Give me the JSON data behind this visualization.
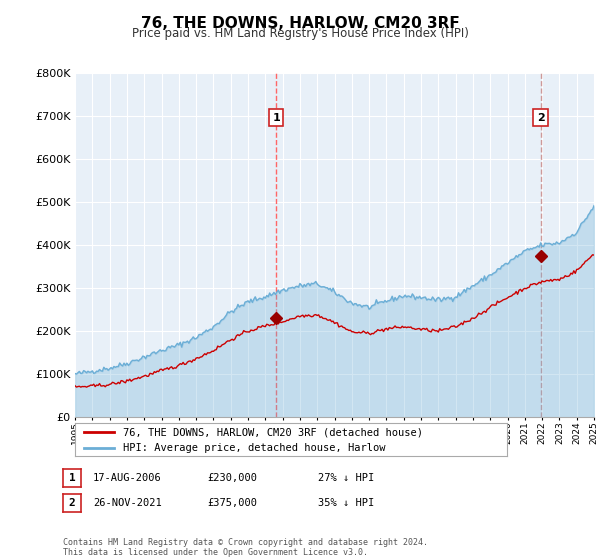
{
  "title": "76, THE DOWNS, HARLOW, CM20 3RF",
  "subtitle": "Price paid vs. HM Land Registry's House Price Index (HPI)",
  "hpi_color": "#6baed6",
  "hpi_fill_color": "#ddeeff",
  "price_color": "#cc0000",
  "marker_color": "#990000",
  "vline1_color": "#ff6666",
  "vline2_color": "#cc9999",
  "background_color": "#ffffff",
  "plot_bg_color": "#e8f0f8",
  "grid_color": "#ffffff",
  "legend_label_price": "76, THE DOWNS, HARLOW, CM20 3RF (detached house)",
  "legend_label_hpi": "HPI: Average price, detached house, Harlow",
  "sale1_date": "17-AUG-2006",
  "sale1_price": "£230,000",
  "sale1_pct": "27% ↓ HPI",
  "sale2_date": "26-NOV-2021",
  "sale2_price": "£375,000",
  "sale2_pct": "35% ↓ HPI",
  "copyright_text": "Contains HM Land Registry data © Crown copyright and database right 2024.\nThis data is licensed under the Open Government Licence v3.0.",
  "sale1_x": 2006.63,
  "sale1_y": 230000,
  "sale2_x": 2021.91,
  "sale2_y": 375000,
  "xmin": 1995,
  "xmax": 2025,
  "ylim": [
    0,
    800000
  ],
  "yticks": [
    0,
    100000,
    200000,
    300000,
    400000,
    500000,
    600000,
    700000,
    800000
  ],
  "ytick_labels": [
    "£0",
    "£100K",
    "£200K",
    "£300K",
    "£400K",
    "£500K",
    "£600K",
    "£700K",
    "£800K"
  ]
}
